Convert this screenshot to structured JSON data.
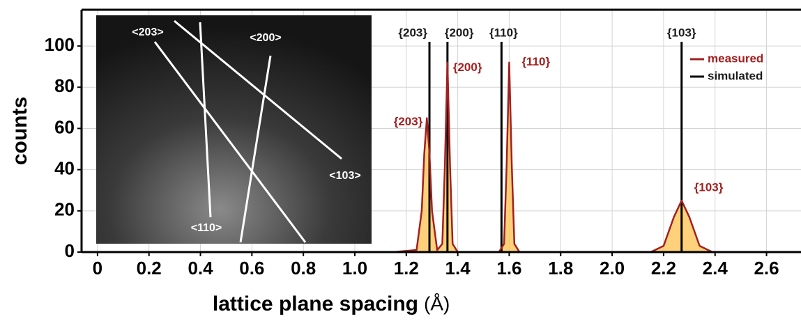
{
  "chart_data": {
    "type": "line",
    "xlabel": "lattice plane spacing",
    "xunit": "(Å)",
    "ylabel": "counts",
    "xlim": [
      -0.062,
      2.734
    ],
    "ylim": [
      0,
      117.6
    ],
    "xticks": [
      0,
      0.2,
      0.4,
      0.6,
      0.8,
      {
        "value": 1,
        "label": "1.0"
      },
      1.2,
      1.4,
      1.6,
      1.8,
      {
        "value": 2,
        "label": "2.0"
      },
      2.2,
      2.4,
      2.6
    ],
    "yticks": [
      0,
      20,
      40,
      60,
      80,
      100
    ],
    "grid": true,
    "legend": "upper right",
    "series": [
      {
        "name": "measured",
        "color": "#a32020",
        "fill": "#ffc24d",
        "x": [
          1.15,
          1.24,
          1.26,
          1.27,
          1.28,
          1.29,
          1.3,
          1.32,
          1.34,
          1.35,
          1.36,
          1.37,
          1.38,
          1.4,
          1.56,
          1.58,
          1.59,
          1.6,
          1.61,
          1.62,
          1.64,
          2.15,
          2.2,
          2.24,
          2.27,
          2.3,
          2.34,
          2.39
        ],
        "values": [
          0,
          1,
          20,
          48,
          65,
          48,
          20,
          1,
          4,
          42,
          92,
          42,
          4,
          0,
          0,
          4,
          42,
          92,
          42,
          4,
          0,
          0,
          3,
          17,
          25,
          17,
          3,
          0
        ],
        "peak_labels": [
          {
            "x": 1.28,
            "y": 65,
            "label": "{203}"
          },
          {
            "x": 1.36,
            "y": 92,
            "label": "{200}"
          },
          {
            "x": 1.6,
            "y": 92,
            "label": "{110}"
          },
          {
            "x": 2.27,
            "y": 25,
            "label": "{103}"
          }
        ]
      },
      {
        "name": "simulated",
        "color": "#000000",
        "x": [
          1.29,
          1.36,
          1.57,
          2.27
        ],
        "labels": [
          "{203}",
          "{200}",
          "{110}",
          "{103}"
        ]
      }
    ],
    "inset_labels": [
      "<203>",
      "<200>",
      "<103>",
      "<110>"
    ]
  }
}
